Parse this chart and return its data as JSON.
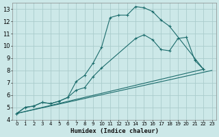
{
  "xlabel": "Humidex (Indice chaleur)",
  "bg_color": "#cce8e8",
  "grid_color": "#aacccc",
  "line_color": "#1a6b6b",
  "xlim": [
    -0.5,
    23.5
  ],
  "ylim": [
    4,
    13.5
  ],
  "xticks": [
    0,
    1,
    2,
    3,
    4,
    5,
    6,
    7,
    8,
    9,
    10,
    11,
    12,
    13,
    14,
    15,
    16,
    17,
    18,
    19,
    20,
    21,
    22,
    23
  ],
  "yticks": [
    4,
    5,
    6,
    7,
    8,
    9,
    10,
    11,
    12,
    13
  ],
  "curve1_x": [
    0,
    1,
    2,
    3,
    4,
    5,
    6,
    7,
    8,
    9,
    10,
    11,
    12,
    13,
    14,
    15,
    16,
    17,
    18,
    22
  ],
  "curve1_y": [
    4.5,
    5.0,
    5.1,
    5.4,
    5.3,
    5.5,
    5.8,
    7.1,
    7.6,
    8.6,
    9.9,
    12.3,
    12.5,
    12.5,
    13.2,
    13.1,
    12.8,
    12.1,
    11.6,
    8.1
  ],
  "curve2_x": [
    0,
    1,
    2,
    3,
    4,
    5,
    6,
    7,
    8,
    9,
    10,
    14,
    15,
    16,
    17,
    18,
    19,
    20,
    21,
    22
  ],
  "curve2_y": [
    4.5,
    5.0,
    5.1,
    5.4,
    5.3,
    5.5,
    5.8,
    6.4,
    6.6,
    7.5,
    8.2,
    10.6,
    10.9,
    10.5,
    9.7,
    9.6,
    10.6,
    10.7,
    8.8,
    8.1
  ],
  "line1_x": [
    0,
    22
  ],
  "line1_y": [
    4.5,
    8.1
  ],
  "line2_x": [
    0,
    23
  ],
  "line2_y": [
    4.5,
    8.0
  ]
}
